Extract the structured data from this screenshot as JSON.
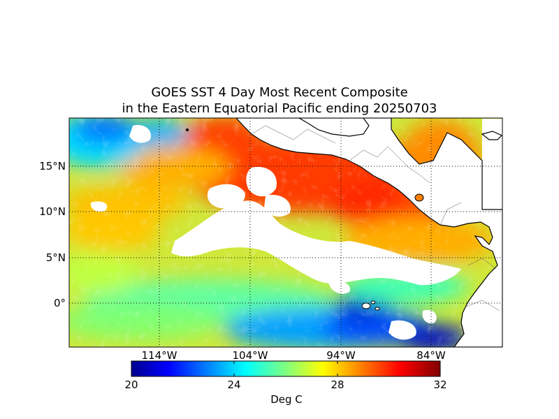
{
  "title": {
    "line1": "GOES SST 4 Day Most Recent Composite",
    "line2": "in the Eastern Equatorial Pacific ending 20250703"
  },
  "lat_labels": [
    "15°N",
    "10°N",
    "5°N",
    "0°"
  ],
  "lon_labels": [
    "114°W",
    "104°W",
    "94°W",
    "84°W"
  ],
  "colorbar": {
    "ticks": [
      "20",
      "24",
      "28",
      "32"
    ],
    "unit": "Deg C",
    "range": [
      20,
      32
    ],
    "colormap": "jet"
  },
  "colors": {
    "land": "#ffffff",
    "coast": "#000000",
    "grid": "#000000",
    "missing": "#ffffff"
  }
}
